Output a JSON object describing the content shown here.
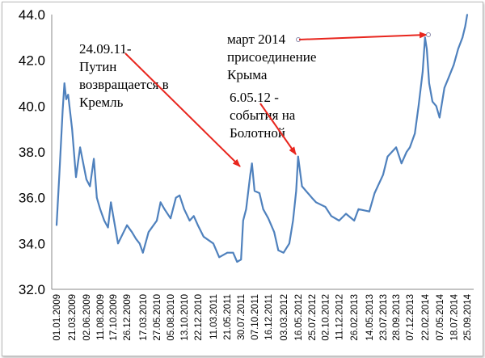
{
  "chart_data": {
    "type": "line",
    "title": "",
    "xlabel": "",
    "ylabel": "",
    "ylim": [
      32.0,
      44.0
    ],
    "yticks": [
      "32.0",
      "34.0",
      "36.0",
      "38.0",
      "40.0",
      "42.0",
      "44.0"
    ],
    "x_tick_labels": [
      "01.01.2009",
      "21.03.2009",
      "02.06.2009",
      "11.08.2009",
      "17.10.2009",
      "26.12.2009",
      "17.03.2010",
      "27.05.2010",
      "05.08.2010",
      "13.10.2010",
      "22.12.2010",
      "11.03.2011",
      "21.05.2011",
      "30.07.2011",
      "07.10.2011",
      "16.12.2011",
      "03.03.2012",
      "16.05.2012",
      "25.07.2012",
      "02.10.2012",
      "11.12.2012",
      "26.02.2013",
      "14.05.2013",
      "23.07.2013",
      "28.09.2013",
      "07.12.2013",
      "22.02.2014",
      "07.05.2014",
      "18.07.2014",
      "25.09.2014"
    ],
    "grid": false,
    "legend": "none",
    "line_color": "#4f81bd",
    "arrow_color": "#e8261e",
    "series": [
      {
        "x": [
          "01.01.2009",
          "15.01.2009",
          "01.02.2009",
          "10.02.2009",
          "19.02.2009",
          "01.03.2009",
          "21.03.2009",
          "10.04.2009",
          "01.05.2009",
          "02.06.2009",
          "20.06.2009",
          "10.07.2009",
          "25.07.2009",
          "11.08.2009",
          "01.09.2009",
          "20.09.2009",
          "05.10.2009",
          "17.10.2009",
          "10.11.2009",
          "26.12.2009",
          "20.01.2010",
          "10.02.2010",
          "28.02.2010",
          "17.03.2010",
          "15.04.2010",
          "27.05.2010",
          "15.06.2010",
          "05.07.2010",
          "05.08.2010",
          "01.09.2010",
          "20.09.2010",
          "13.10.2010",
          "10.11.2010",
          "01.12.2010",
          "22.12.2010",
          "20.01.2011",
          "11.03.2011",
          "10.04.2011",
          "21.05.2011",
          "20.06.2011",
          "10.07.2011",
          "30.07.2011",
          "10.08.2011",
          "25.08.2011",
          "15.09.2011",
          "24.09.2011",
          "07.10.2011",
          "01.11.2011",
          "20.11.2011",
          "16.12.2011",
          "15.01.2012",
          "05.02.2012",
          "03.03.2012",
          "01.04.2012",
          "20.04.2012",
          "06.05.2012",
          "16.05.2012",
          "05.06.2012",
          "25.07.2012",
          "15.08.2012",
          "02.10.2012",
          "01.11.2012",
          "11.12.2012",
          "15.01.2013",
          "26.02.2013",
          "20.03.2013",
          "14.05.2013",
          "10.06.2013",
          "23.07.2013",
          "15.08.2013",
          "28.09.2013",
          "25.10.2013",
          "20.11.2013",
          "07.12.2013",
          "01.01.2014",
          "20.01.2014",
          "10.02.2014",
          "22.02.2014",
          "03.03.2014",
          "15.03.2014",
          "01.04.2014",
          "20.04.2014",
          "07.05.2014",
          "01.06.2014",
          "20.06.2014",
          "18.07.2014",
          "10.08.2014",
          "01.09.2014",
          "15.09.2014",
          "25.09.2014"
        ],
        "y": [
          34.8,
          37.0,
          39.8,
          41.0,
          40.3,
          40.5,
          39.0,
          36.9,
          38.2,
          36.8,
          36.5,
          37.7,
          36.0,
          35.5,
          35.0,
          34.7,
          35.8,
          35.2,
          34.0,
          34.8,
          34.5,
          34.2,
          34.0,
          33.6,
          34.5,
          35.0,
          35.8,
          35.5,
          35.1,
          36.0,
          36.1,
          35.5,
          35.0,
          35.2,
          34.8,
          34.3,
          34.0,
          33.4,
          33.6,
          33.6,
          33.2,
          33.3,
          35.0,
          35.5,
          37.0,
          37.5,
          36.3,
          36.2,
          35.5,
          35.1,
          34.5,
          33.7,
          33.6,
          34.0,
          35.0,
          36.3,
          37.8,
          36.5,
          36.0,
          35.8,
          35.6,
          35.2,
          35.0,
          35.3,
          35.0,
          35.5,
          35.4,
          36.2,
          37.0,
          37.8,
          38.2,
          37.5,
          38.0,
          38.2,
          38.8,
          40.0,
          41.5,
          43.0,
          42.5,
          41.0,
          40.2,
          40.0,
          39.5,
          40.8,
          41.2,
          41.8,
          42.5,
          43.0,
          43.5,
          44.0
        ]
      }
    ],
    "annotations": [
      {
        "lines": [
          "24.09.11-",
          "Путин",
          "возвращается в",
          "Кремль"
        ],
        "points_to": "24.09.2011"
      },
      {
        "lines": [
          "6.05.12 -",
          "события на",
          "Болотной"
        ],
        "points_to": "06.05.2012"
      },
      {
        "lines": [
          "март 2014",
          "присоединение",
          "Крыма"
        ],
        "points_to": "03.03.2014"
      }
    ]
  }
}
